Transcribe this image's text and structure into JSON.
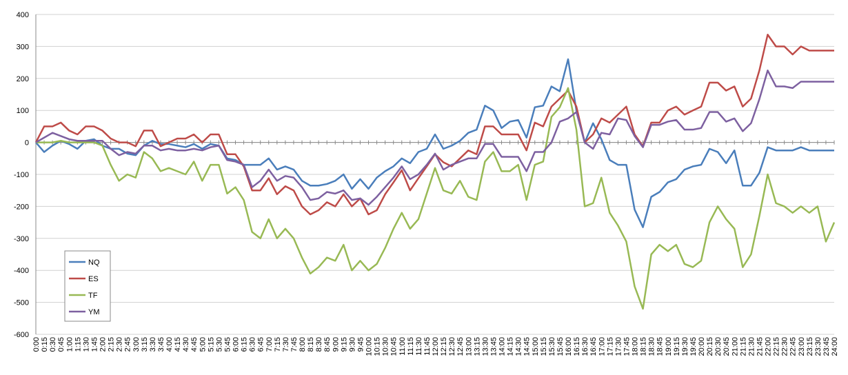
{
  "chart_data": {
    "type": "line",
    "title": "",
    "xlabel": "",
    "ylabel": "",
    "ylim": [
      -600,
      400
    ],
    "yticks": [
      400,
      300,
      200,
      100,
      0,
      -100,
      -200,
      -300,
      -400,
      -500,
      -600
    ],
    "grid": "horizontal",
    "legend": "bottom-left",
    "x": [
      "0:00",
      "0:15",
      "0:30",
      "0:45",
      "1:00",
      "1:15",
      "1:30",
      "1:45",
      "2:00",
      "2:15",
      "2:30",
      "2:45",
      "3:00",
      "3:15",
      "3:30",
      "3:45",
      "4:00",
      "4:15",
      "4:30",
      "4:45",
      "5:00",
      "5:15",
      "5:30",
      "5:45",
      "6:00",
      "6:15",
      "6:30",
      "6:45",
      "7:00",
      "7:15",
      "7:30",
      "7:45",
      "8:00",
      "8:15",
      "8:30",
      "8:45",
      "9:00",
      "9:15",
      "9:30",
      "9:45",
      "10:00",
      "10:15",
      "10:30",
      "10:45",
      "11:00",
      "11:15",
      "11:30",
      "11:45",
      "12:00",
      "12:15",
      "12:30",
      "12:45",
      "13:00",
      "13:15",
      "13:30",
      "13:45",
      "14:00",
      "14:15",
      "14:30",
      "14:45",
      "15:00",
      "15:15",
      "15:30",
      "15:45",
      "16:00",
      "16:15",
      "16:30",
      "16:45",
      "17:00",
      "17:15",
      "17:30",
      "17:45",
      "18:00",
      "18:15",
      "18:30",
      "18:45",
      "19:00",
      "19:15",
      "19:30",
      "19:45",
      "20:00",
      "20:15",
      "20:30",
      "20:45",
      "21:00",
      "21:15",
      "21:30",
      "21:45",
      "22:00",
      "22:15",
      "22:30",
      "22:45",
      "23:00",
      "23:15",
      "23:30",
      "23:45",
      "24:00"
    ],
    "series": [
      {
        "name": "NQ",
        "color": "#4a7ebb",
        "values": [
          0,
          -30,
          -10,
          5,
          -5,
          -20,
          5,
          10,
          -10,
          -20,
          -20,
          -35,
          -40,
          -10,
          5,
          -5,
          -5,
          -10,
          -15,
          -5,
          -20,
          -5,
          -10,
          -50,
          -55,
          -70,
          -70,
          -70,
          -50,
          -85,
          -75,
          -85,
          -120,
          -135,
          -135,
          -130,
          -120,
          -100,
          -145,
          -115,
          -145,
          -110,
          -90,
          -75,
          -50,
          -65,
          -30,
          -20,
          25,
          -20,
          -10,
          5,
          30,
          40,
          115,
          100,
          45,
          65,
          70,
          15,
          110,
          115,
          175,
          160,
          260,
          100,
          0,
          60,
          10,
          -55,
          -70,
          -70,
          -210,
          -265,
          -170,
          -155,
          -125,
          -115,
          -85,
          -75,
          -70,
          -20,
          -30,
          -65,
          -25,
          -135,
          -135,
          -95,
          -15,
          -25,
          -25,
          -25,
          -15,
          -25,
          -25,
          -25,
          -25
        ]
      },
      {
        "name": "ES",
        "color": "#be4b48",
        "values": [
          0,
          50,
          50,
          62,
          37,
          25,
          50,
          50,
          37,
          12,
          0,
          0,
          -12,
          37,
          37,
          -12,
          0,
          12,
          12,
          25,
          0,
          25,
          25,
          -37,
          -37,
          -75,
          -150,
          -150,
          -112,
          -162,
          -137,
          -150,
          -200,
          -225,
          -212,
          -187,
          -200,
          -162,
          -200,
          -175,
          -225,
          -212,
          -162,
          -125,
          -87,
          -150,
          -112,
          -75,
          -37,
          -62,
          -75,
          -50,
          -25,
          -37,
          50,
          50,
          25,
          25,
          25,
          -25,
          62,
          50,
          112,
          137,
          162,
          112,
          0,
          25,
          75,
          62,
          87,
          112,
          25,
          -12,
          62,
          62,
          100,
          112,
          87,
          100,
          112,
          187,
          187,
          162,
          175,
          112,
          137,
          225,
          337,
          300,
          300,
          275,
          300,
          287,
          287,
          287,
          287
        ]
      },
      {
        "name": "TF",
        "color": "#98b954",
        "values": [
          0,
          0,
          0,
          5,
          0,
          0,
          0,
          0,
          -10,
          -70,
          -120,
          -100,
          -110,
          -30,
          -50,
          -90,
          -80,
          -90,
          -100,
          -60,
          -120,
          -70,
          -70,
          -160,
          -140,
          -180,
          -280,
          -300,
          -240,
          -300,
          -270,
          -300,
          -360,
          -410,
          -390,
          -360,
          -370,
          -320,
          -400,
          -370,
          -400,
          -380,
          -330,
          -270,
          -220,
          -270,
          -240,
          -160,
          -80,
          -150,
          -160,
          -120,
          -170,
          -180,
          -60,
          -30,
          -90,
          -90,
          -70,
          -180,
          -70,
          -60,
          80,
          110,
          170,
          40,
          -200,
          -190,
          -110,
          -220,
          -260,
          -310,
          -450,
          -520,
          -350,
          -320,
          -340,
          -320,
          -380,
          -390,
          -370,
          -250,
          -200,
          -240,
          -270,
          -390,
          -350,
          -230,
          -100,
          -190,
          -200,
          -220,
          -200,
          -220,
          -200,
          -310,
          -250
        ]
      },
      {
        "name": "YM",
        "color": "#7d60a0",
        "values": [
          0,
          15,
          30,
          20,
          10,
          5,
          5,
          5,
          5,
          -20,
          -40,
          -30,
          -35,
          -10,
          -10,
          -25,
          -20,
          -25,
          -25,
          -20,
          -25,
          -15,
          -10,
          -55,
          -60,
          -70,
          -140,
          -120,
          -85,
          -120,
          -105,
          -110,
          -140,
          -180,
          -175,
          -155,
          -160,
          -150,
          -180,
          -175,
          -195,
          -170,
          -140,
          -110,
          -75,
          -115,
          -100,
          -70,
          -35,
          -85,
          -70,
          -60,
          -50,
          -50,
          -5,
          -5,
          -45,
          -45,
          -45,
          -90,
          -30,
          -30,
          0,
          65,
          75,
          95,
          0,
          -20,
          30,
          25,
          75,
          70,
          20,
          -15,
          55,
          55,
          65,
          70,
          40,
          40,
          45,
          95,
          95,
          65,
          75,
          35,
          60,
          135,
          225,
          175,
          175,
          170,
          190,
          190,
          190,
          190,
          190
        ]
      }
    ]
  }
}
